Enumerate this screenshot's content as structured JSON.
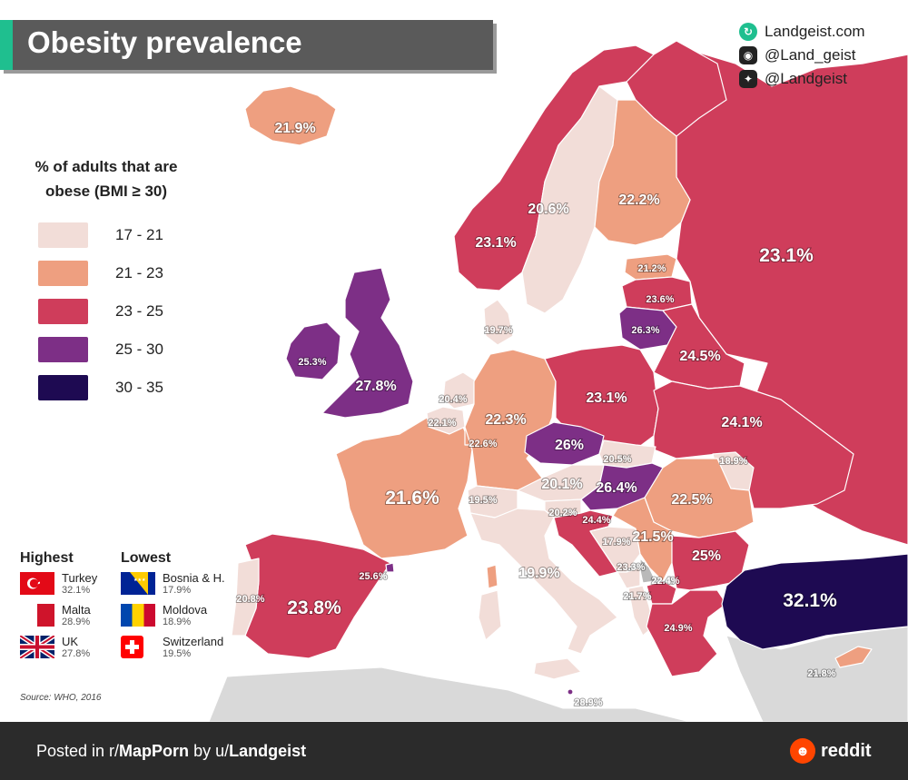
{
  "title": "Obesity prevalence",
  "social": {
    "website": "Landgeist.com",
    "instagram": "@Land_geist",
    "twitter": "@Landgeist",
    "website_icon": "globe-icon",
    "instagram_icon": "instagram-icon",
    "twitter_icon": "twitter-icon"
  },
  "legend": {
    "title_line1": "% of adults that are",
    "title_line2": "obese (BMI ≥ 30)",
    "items": [
      {
        "range": "17 - 21",
        "color": "#f2ddd8"
      },
      {
        "range": "21 - 23",
        "color": "#ee9f80"
      },
      {
        "range": "23 - 25",
        "color": "#cf3d5b"
      },
      {
        "range": "25 - 30",
        "color": "#7d2f86"
      },
      {
        "range": "30 - 35",
        "color": "#1e0a52"
      }
    ]
  },
  "countries": [
    {
      "name": "Iceland",
      "value": "21.9%"
    },
    {
      "name": "Norway",
      "value": "23.1%"
    },
    {
      "name": "Sweden",
      "value": "20.6%"
    },
    {
      "name": "Finland",
      "value": "22.2%"
    },
    {
      "name": "Russia",
      "value": "23.1%"
    },
    {
      "name": "Estonia",
      "value": "21.2%"
    },
    {
      "name": "Latvia",
      "value": "23.6%"
    },
    {
      "name": "Lithuania",
      "value": "26.3%"
    },
    {
      "name": "Denmark",
      "value": "19.7%"
    },
    {
      "name": "Ireland",
      "value": "25.3%"
    },
    {
      "name": "United Kingdom",
      "value": "27.8%"
    },
    {
      "name": "Belarus",
      "value": "24.5%"
    },
    {
      "name": "Netherlands",
      "value": "20.4%"
    },
    {
      "name": "Belgium",
      "value": "22.1%"
    },
    {
      "name": "Luxembourg",
      "value": "22.6%"
    },
    {
      "name": "Germany",
      "value": "22.3%"
    },
    {
      "name": "Poland",
      "value": "23.1%"
    },
    {
      "name": "Ukraine",
      "value": "24.1%"
    },
    {
      "name": "Czechia",
      "value": "26%"
    },
    {
      "name": "Slovakia",
      "value": "20.5%"
    },
    {
      "name": "Moldova",
      "value": "18.9%"
    },
    {
      "name": "France",
      "value": "21.6%"
    },
    {
      "name": "Switzerland",
      "value": "19.5%"
    },
    {
      "name": "Austria",
      "value": "20.1%"
    },
    {
      "name": "Hungary",
      "value": "26.4%"
    },
    {
      "name": "Romania",
      "value": "22.5%"
    },
    {
      "name": "Slovenia",
      "value": "20.2%"
    },
    {
      "name": "Croatia",
      "value": "24.4%"
    },
    {
      "name": "Bosnia",
      "value": "17.9%"
    },
    {
      "name": "Serbia",
      "value": "21.5%"
    },
    {
      "name": "Bulgaria",
      "value": "25%"
    },
    {
      "name": "Montenegro",
      "value": "23.3%"
    },
    {
      "name": "North Macedonia",
      "value": "22.4%"
    },
    {
      "name": "Albania",
      "value": "21.7%"
    },
    {
      "name": "Andorra",
      "value": "25.6%"
    },
    {
      "name": "Portugal",
      "value": "20.8%"
    },
    {
      "name": "Spain",
      "value": "23.8%"
    },
    {
      "name": "Italy",
      "value": "19.9%"
    },
    {
      "name": "Greece",
      "value": "24.9%"
    },
    {
      "name": "Turkey",
      "value": "32.1%"
    },
    {
      "name": "Cyprus",
      "value": "21.8%"
    },
    {
      "name": "Malta",
      "value": "28.9%"
    }
  ],
  "highest": {
    "title": "Highest",
    "items": [
      {
        "name": "Turkey",
        "value": "32.1%",
        "flag_icon": "turkey-flag-icon"
      },
      {
        "name": "Malta",
        "value": "28.9%",
        "flag_icon": "malta-flag-icon"
      },
      {
        "name": "UK",
        "value": "27.8%",
        "flag_icon": "uk-flag-icon"
      }
    ]
  },
  "lowest": {
    "title": "Lowest",
    "items": [
      {
        "name": "Bosnia & H.",
        "value": "17.9%",
        "flag_icon": "bosnia-flag-icon"
      },
      {
        "name": "Moldova",
        "value": "18.9%",
        "flag_icon": "moldova-flag-icon"
      },
      {
        "name": "Switzerland",
        "value": "19.5%",
        "flag_icon": "switzerland-flag-icon"
      }
    ]
  },
  "source": "Source: WHO, 2016",
  "footer": {
    "posted_in": "Posted in r/",
    "subreddit": "MapPorn",
    "by": " by u/",
    "user": "Landgeist",
    "brand": "reddit",
    "brand_icon": "reddit-icon"
  }
}
